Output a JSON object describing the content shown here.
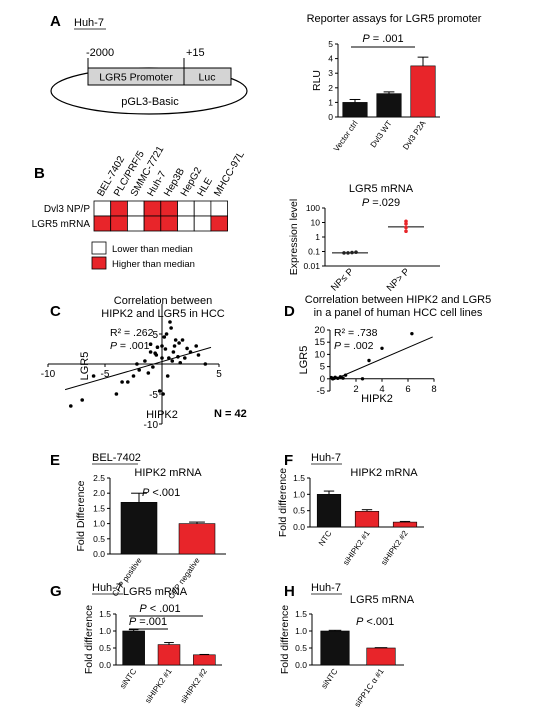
{
  "panel_a": {
    "letter": "A",
    "cell_line": "Huh-7",
    "pos_start": "-2000",
    "pos_end": "+15",
    "promoter_label": "LGR5 Promoter",
    "luc_label": "Luc",
    "plasmid_label": "pGL3-Basic"
  },
  "panel_b": {
    "letter": "B",
    "cell_lines": [
      "BEL-7402",
      "PLC/PRF/5",
      "SMMC-7721",
      "Huh-7",
      "Hep3B",
      "HepG2",
      "HLE",
      "MHCC-97L"
    ],
    "rows": [
      {
        "label": "Dvl3 NP/P",
        "high": [
          false,
          true,
          false,
          true,
          true,
          false,
          false,
          false
        ]
      },
      {
        "label": "LGR5 mRNA",
        "high": [
          true,
          true,
          false,
          true,
          true,
          false,
          false,
          true
        ]
      }
    ],
    "legend_low": "Lower than median",
    "legend_high": "Higher than median",
    "colors": {
      "high": "#e8252a",
      "low": "#ffffff"
    }
  },
  "panel_c": {
    "letter": "C",
    "title_line1": "Correlation between",
    "title_line2": "HIPK2 and LGR5 in HCC",
    "r2": "R² = .262",
    "p_prefix": "P",
    "p_value": " = .001",
    "n_label": "N = 42",
    "xlabel": "HIPK2",
    "ylabel": "LGR5",
    "x_ticks": [
      "-10",
      "-5",
      "5"
    ],
    "y_ticks": [
      "5",
      "-5",
      "-10"
    ]
  },
  "panel_d": {
    "letter": "D",
    "title_line1": "Correlation between HIPK2 and LGR5",
    "title_line2": "in a panel of human HCC cell lines",
    "r2": "R² = .738",
    "p_prefix": "P",
    "p_value": " = .002",
    "xlabel": "HIPK2",
    "ylabel": "LGR5"
  },
  "panel_e": {
    "letter": "E",
    "cell_line": "BEL-7402",
    "p_prefix": "P",
    "p_value": " <.001"
  },
  "panel_f": {
    "letter": "F",
    "cell_line": "Huh-7"
  },
  "panel_g": {
    "letter": "G",
    "cell_line": "Huh-7",
    "p_prefix": "P",
    "p1": " =.001",
    "p2": " < .001"
  },
  "panel_h": {
    "letter": "H",
    "cell_line": "Huh-7",
    "p_prefix": "P",
    "p_value": " <.001"
  },
  "panel_a_p": {
    "p_prefix": "P",
    "p_value": " = .001"
  },
  "panel_b_p": {
    "p_prefix": "P",
    "p_value": " =.029"
  },
  "chart_data": [
    {
      "id": "A",
      "type": "bar",
      "title": "Reporter assays for LGR5 promoter",
      "ylabel": "RLU",
      "categories": [
        "Vector ctrl",
        "Dvl3 WT",
        "Dvl3 P2A"
      ],
      "values": [
        1.0,
        1.6,
        3.5
      ],
      "errors": [
        0.2,
        0.12,
        0.6
      ],
      "colors": [
        "#111111",
        "#111111",
        "#e8252a"
      ],
      "ylim": [
        0,
        5
      ],
      "yticks": [
        0,
        1,
        2,
        3,
        4,
        5
      ]
    },
    {
      "id": "B",
      "type": "scatter",
      "title": "LGR5 mRNA",
      "ylabel": "Expression level",
      "categories": [
        "NP≤ P",
        "NP> P"
      ],
      "yscale": "log",
      "ylim": [
        0.01,
        100
      ],
      "yticks": [
        0.01,
        0.1,
        1,
        10,
        100
      ],
      "ytick_labels": [
        "0.01",
        "0.1",
        "1",
        "10",
        "100"
      ],
      "series": [
        {
          "values": [
            0.08,
            0.08,
            0.085,
            0.09
          ],
          "medians": 0.08,
          "color": "#222222"
        },
        {
          "values": [
            2.5,
            4.5,
            8,
            12
          ],
          "medians": 5,
          "color": "#e8252a"
        }
      ]
    },
    {
      "id": "C",
      "type": "scatter",
      "xlim": [
        -10,
        5
      ],
      "ylim": [
        -10,
        10
      ],
      "x": [
        -1,
        -0.5,
        0,
        0.3,
        0.6,
        1,
        1.2,
        1.5,
        -1.5,
        -2,
        -2.5,
        -3,
        0.4,
        0.8,
        -0.8,
        2,
        2.5,
        3,
        -0.2,
        0.1,
        1.8,
        -1.2,
        0.9,
        -0.4,
        0.5,
        1.4,
        2.2,
        -3.5,
        -4,
        -6,
        -7,
        -2.2,
        0.2,
        1.1,
        3.2,
        3.8,
        -0.6,
        0,
        -1,
        0.7,
        1.6,
        -8
      ],
      "y": [
        2,
        1.5,
        3,
        2.5,
        1,
        2,
        4,
        3.5,
        0.5,
        -1,
        -2,
        -3,
        5,
        6,
        -0.5,
        1,
        2,
        3,
        -4.5,
        -5,
        4,
        -1.5,
        0.5,
        2.8,
        -2,
        1.2,
        2.6,
        -3,
        -5,
        -2,
        -6,
        0,
        4.5,
        3,
        1.5,
        0,
        1.8,
        1,
        3.3,
        7,
        0.2,
        -7
      ],
      "fit": {
        "slope": 0.55,
        "intercept": 0.4
      }
    },
    {
      "id": "D",
      "type": "scatter",
      "xlim": [
        0,
        8
      ],
      "ylim": [
        -5,
        20
      ],
      "xticks": [
        2,
        4,
        6,
        8
      ],
      "yticks": [
        -5,
        0,
        5,
        10,
        15,
        20
      ],
      "x": [
        0.1,
        0.2,
        0.4,
        0.6,
        0.8,
        1.0,
        1.2,
        2.5,
        3.0,
        4.0,
        6.3,
        0.3
      ],
      "y": [
        0.5,
        0.0,
        0.6,
        0.2,
        0.8,
        0.3,
        1.5,
        0.0,
        7.5,
        12.5,
        18.5,
        0.2
      ],
      "fit": {
        "slope": 2.3,
        "intercept": -1.0
      }
    },
    {
      "id": "E",
      "type": "bar",
      "title": "HIPK2 mRNA",
      "ylabel": "Fold Difference",
      "categories": [
        "CFP positive",
        "CFP negative"
      ],
      "values": [
        1.7,
        1.0
      ],
      "errors": [
        0.3,
        0.05
      ],
      "colors": [
        "#111111",
        "#e8252a"
      ],
      "ylim": [
        0,
        2.5
      ],
      "yticks": [
        0,
        0.5,
        1.0,
        1.5,
        2.0,
        2.5
      ],
      "ytick_labels": [
        "0.0",
        "0.5",
        "1.0",
        "1.5",
        "2.0",
        "2.5"
      ]
    },
    {
      "id": "F",
      "type": "bar",
      "title": "HIPK2 mRNA",
      "ylabel": "Fold difference",
      "categories": [
        "NTC",
        "siHIPK2 #1",
        "siHIPK2 #2"
      ],
      "values": [
        1.0,
        0.48,
        0.15
      ],
      "errors": [
        0.1,
        0.05,
        0.02
      ],
      "colors": [
        "#111111",
        "#e8252a",
        "#e8252a"
      ],
      "ylim": [
        0,
        1.5
      ],
      "yticks": [
        0,
        0.5,
        1.0,
        1.5
      ],
      "ytick_labels": [
        "0.0",
        "0.5",
        "1.0",
        "1.5"
      ]
    },
    {
      "id": "G",
      "type": "bar",
      "title": "LGR5 mRNA",
      "ylabel": "Fold difference",
      "categories": [
        "siNTC",
        "siHIPK2 #1",
        "siHIPK2 #2"
      ],
      "values": [
        1.0,
        0.6,
        0.3
      ],
      "errors": [
        0.04,
        0.06,
        0.01
      ],
      "colors": [
        "#111111",
        "#e8252a",
        "#e8252a"
      ],
      "ylim": [
        0,
        1.5
      ],
      "yticks": [
        0,
        0.5,
        1.0,
        1.5
      ],
      "ytick_labels": [
        "0.0",
        "0.5",
        "1.0",
        "1.5"
      ]
    },
    {
      "id": "H",
      "type": "bar",
      "title": "LGR5 mRNA",
      "ylabel": "Fold difference",
      "categories": [
        "siNTC",
        "siPP1C α #1"
      ],
      "values": [
        1.0,
        0.5
      ],
      "errors": [
        0.02,
        0.01
      ],
      "colors": [
        "#111111",
        "#e8252a"
      ],
      "ylim": [
        0,
        1.5
      ],
      "yticks": [
        0,
        0.5,
        1.0,
        1.5
      ],
      "ytick_labels": [
        "0.0",
        "0.5",
        "1.0",
        "1.5"
      ]
    }
  ]
}
